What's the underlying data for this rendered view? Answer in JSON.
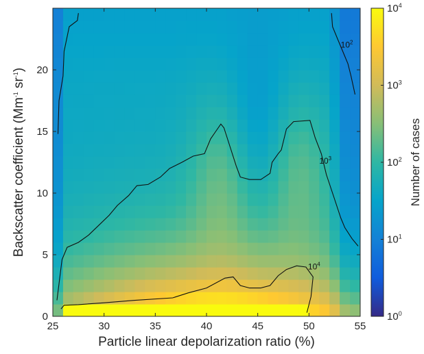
{
  "chart_data": {
    "type": "heatmap",
    "title": "",
    "xlabel": "Particle linear depolarization ratio (%)",
    "ylabel": {
      "main": "Backscatter coefficient (Mm",
      "sup1": "-1",
      "mid": " sr",
      "sup2": "-1",
      "end": ")"
    },
    "xlim": [
      25,
      55
    ],
    "ylim": [
      0,
      25
    ],
    "x_ticks": [
      25,
      30,
      35,
      40,
      45,
      50,
      55
    ],
    "y_ticks": [
      0,
      5,
      10,
      15,
      20
    ],
    "x_tick_labels": [
      "25",
      "30",
      "35",
      "40",
      "45",
      "50",
      "55"
    ],
    "y_tick_labels": [
      "0",
      "5",
      "10",
      "15",
      "20"
    ],
    "grid": false,
    "colorbar": {
      "label": "Number of cases",
      "scale": "log10",
      "range_exponents": [
        0,
        4
      ],
      "tick_exponents": [
        0,
        1,
        2,
        3,
        4
      ],
      "tick_labels": [
        {
          "base": "10",
          "exp": "0"
        },
        {
          "base": "10",
          "exp": "1"
        },
        {
          "base": "10",
          "exp": "2"
        },
        {
          "base": "10",
          "exp": "3"
        },
        {
          "base": "10",
          "exp": "4"
        }
      ],
      "colormap": "parula"
    },
    "grid_model": {
      "note_units": "log10 of number of cases, estimated per 1 x 1 bin",
      "x_bin_width": 1,
      "y_bin_height": 1
    },
    "contours": [
      {
        "level_label": {
          "base": "10",
          "exp": "2"
        },
        "level_exponent": 2,
        "lines": [
          [
            [
              25.5,
              14.8
            ],
            [
              25.6,
              17.5
            ],
            [
              26.0,
              19.5
            ],
            [
              26.1,
              21.5
            ],
            [
              26.6,
              23.5
            ],
            [
              27.4,
              24.0
            ],
            [
              27.5,
              24.6
            ]
          ],
          [
            [
              52.2,
              24.6
            ],
            [
              52.3,
              23.5
            ],
            [
              52.8,
              22.5
            ],
            [
              53.3,
              21.5
            ],
            [
              53.8,
              20.5
            ],
            [
              54.1,
              19.5
            ],
            [
              54.5,
              18.0
            ]
          ]
        ],
        "label_pos": [
          53.7,
          21.8
        ]
      },
      {
        "level_label": {
          "base": "10",
          "exp": "3"
        },
        "level_exponent": 3,
        "lines": [
          [
            [
              25.4,
              1.3
            ],
            [
              25.9,
              4.6
            ],
            [
              26.4,
              5.6
            ],
            [
              27.5,
              6.0
            ],
            [
              28.5,
              6.6
            ],
            [
              29.5,
              7.4
            ],
            [
              30.5,
              8.2
            ],
            [
              31.3,
              9.0
            ],
            [
              32.4,
              9.8
            ],
            [
              33.2,
              10.6
            ],
            [
              34.3,
              10.7
            ],
            [
              35.5,
              11.3
            ],
            [
              36.4,
              12.0
            ],
            [
              37.6,
              12.5
            ],
            [
              38.7,
              13.0
            ],
            [
              39.8,
              13.2
            ],
            [
              40.4,
              14.4
            ],
            [
              40.9,
              15.0
            ],
            [
              41.4,
              15.6
            ],
            [
              41.7,
              15.3
            ],
            [
              42.4,
              13.5
            ],
            [
              42.9,
              12.2
            ],
            [
              43.3,
              11.3
            ],
            [
              44.2,
              11.1
            ],
            [
              45.3,
              11.1
            ],
            [
              46.2,
              11.6
            ],
            [
              46.4,
              12.5
            ],
            [
              47.0,
              13.2
            ],
            [
              47.3,
              13.5
            ],
            [
              47.8,
              15.2
            ],
            [
              48.5,
              15.8
            ],
            [
              50.1,
              15.9
            ],
            [
              50.6,
              14.5
            ],
            [
              51.2,
              13.2
            ],
            [
              51.7,
              11.5
            ],
            [
              52.5,
              9.5
            ],
            [
              53.1,
              8.0
            ],
            [
              53.5,
              7.2
            ],
            [
              54.2,
              6.3
            ],
            [
              54.8,
              5.7
            ]
          ]
        ],
        "label_pos": [
          51.6,
          12.4
        ]
      },
      {
        "level_label": {
          "base": "10",
          "exp": "4"
        },
        "level_exponent": 4,
        "lines": [
          [
            [
              25.8,
              0.6
            ],
            [
              26.1,
              0.9
            ],
            [
              27.5,
              0.95
            ],
            [
              30.0,
              1.1
            ],
            [
              33.0,
              1.3
            ],
            [
              36.7,
              1.5
            ],
            [
              38.2,
              1.9
            ],
            [
              40.0,
              2.3
            ],
            [
              41.8,
              3.1
            ],
            [
              42.6,
              3.2
            ],
            [
              43.3,
              2.5
            ],
            [
              44.2,
              2.3
            ],
            [
              45.3,
              2.3
            ],
            [
              46.2,
              2.5
            ],
            [
              47.0,
              3.3
            ],
            [
              47.8,
              3.8
            ],
            [
              48.8,
              4.1
            ],
            [
              49.7,
              4.0
            ],
            [
              50.4,
              3.2
            ],
            [
              50.2,
              1.6
            ],
            [
              49.8,
              0.3
            ]
          ]
        ],
        "label_pos": [
          50.5,
          3.8
        ]
      }
    ]
  }
}
